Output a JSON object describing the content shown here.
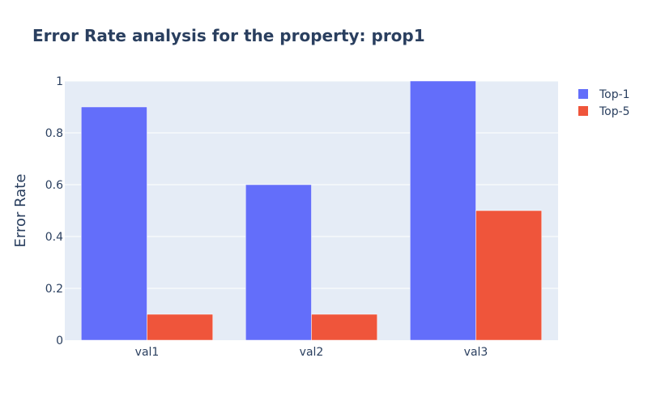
{
  "chart_data": {
    "type": "bar",
    "title": "Error Rate analysis for the property: prop1",
    "xlabel": "",
    "ylabel": "Error Rate",
    "categories": [
      "val1",
      "val2",
      "val3"
    ],
    "series": [
      {
        "name": "Top-1",
        "values": [
          0.9,
          0.6,
          1.0
        ],
        "color": "#636efa"
      },
      {
        "name": "Top-5",
        "values": [
          0.1,
          0.1,
          0.5
        ],
        "color": "#ef553b"
      }
    ],
    "ylim": [
      0,
      1
    ],
    "yticks": [
      0,
      0.2,
      0.4,
      0.6,
      0.8,
      1
    ],
    "ytick_labels": [
      "0",
      "0.2",
      "0.4",
      "0.6",
      "0.8",
      "1"
    ],
    "grid": true,
    "legend_position": "top-right",
    "plot_background": "#e5ecf6"
  }
}
